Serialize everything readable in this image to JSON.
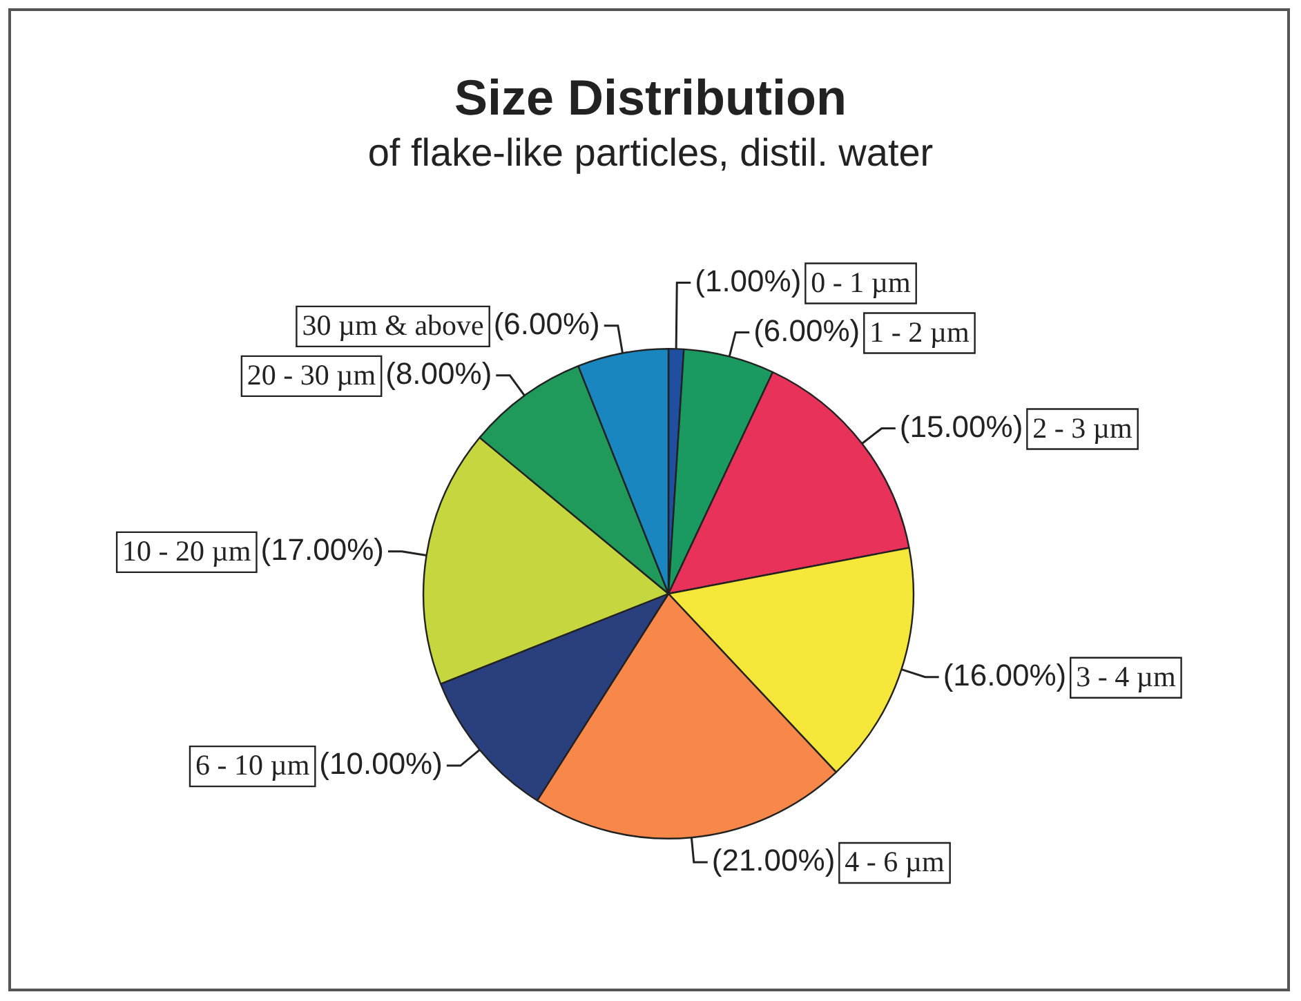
{
  "chart_data": {
    "type": "pie",
    "title": "Size Distribution",
    "subtitle": "of flake-like particles, distil. water",
    "categories": [
      "0 - 1 µm",
      "1 - 2 µm",
      "2 - 3 µm",
      "3 - 4 µm",
      "4 - 6 µm",
      "6 - 10 µm",
      "10 - 20 µm",
      "20 - 30 µm",
      "30 µm & above"
    ],
    "values": [
      1,
      6,
      15,
      16,
      21,
      10,
      17,
      8,
      6
    ],
    "value_labels": [
      "(1.00%)",
      "(6.00%)",
      "(15.00%)",
      "(16.00%)",
      "(21.00%)",
      "(10.00%)",
      "(17.00%)",
      "(8.00%)",
      "(6.00%)"
    ],
    "colors": [
      "#1f4fa0",
      "#1a9a60",
      "#e8325a",
      "#f5e63a",
      "#f7884a",
      "#2a3f7e",
      "#c5d63f",
      "#1f9a5a",
      "#1a86c0"
    ]
  }
}
